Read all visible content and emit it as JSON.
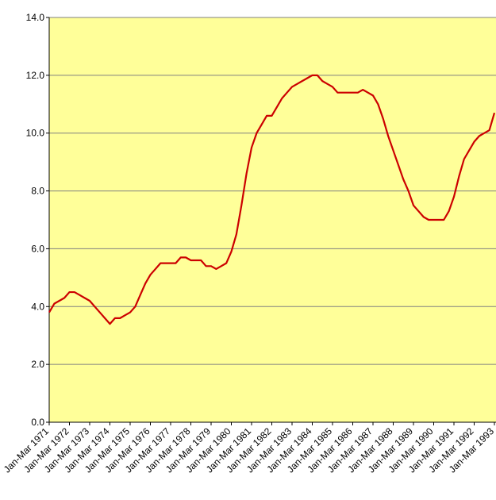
{
  "chart_data": {
    "type": "line",
    "categories": [
      "Jan-Mar 1971",
      null,
      null,
      null,
      "Jan-Mar 1972",
      null,
      null,
      null,
      "Jan-Mar 1973",
      null,
      null,
      null,
      "Jan-Mar 1974",
      null,
      null,
      null,
      "Jan-Mar 1975",
      null,
      null,
      null,
      "Jan-Mar 1976",
      null,
      null,
      null,
      "Jan-Mar 1977",
      null,
      null,
      null,
      "Jan-Mar 1978",
      null,
      null,
      null,
      "Jan-Mar 1979",
      null,
      null,
      null,
      "Jan-Mar 1980",
      null,
      null,
      null,
      "Jan-Mar 1981",
      null,
      null,
      null,
      "Jan-Mar 1982",
      null,
      null,
      null,
      "Jan-Mar 1983",
      null,
      null,
      null,
      "Jan-Mar 1984",
      null,
      null,
      null,
      "Jan-Mar 1985",
      null,
      null,
      null,
      "Jan-Mar 1986",
      null,
      null,
      null,
      "Jan-Mar 1987",
      null,
      null,
      null,
      "Jan-Mar 1988",
      null,
      null,
      null,
      "Jan-Mar 1989",
      null,
      null,
      null,
      "Jan-Mar 1990",
      null,
      null,
      null,
      "Jan-Mar 1991",
      null,
      null,
      null,
      "Jan-Mar 1992",
      null,
      null,
      null,
      "Jan-Mar 1993"
    ],
    "values": [
      3.8,
      4.1,
      4.2,
      4.3,
      4.5,
      4.5,
      4.4,
      4.3,
      4.2,
      4.0,
      3.8,
      3.6,
      3.4,
      3.6,
      3.6,
      3.7,
      3.8,
      4.0,
      4.4,
      4.8,
      5.1,
      5.3,
      5.5,
      5.5,
      5.5,
      5.5,
      5.7,
      5.7,
      5.6,
      5.6,
      5.6,
      5.4,
      5.4,
      5.3,
      5.4,
      5.5,
      5.9,
      6.5,
      7.5,
      8.6,
      9.5,
      10.0,
      10.3,
      10.6,
      10.6,
      10.9,
      11.2,
      11.4,
      11.6,
      11.7,
      11.8,
      11.9,
      12.0,
      12.0,
      11.8,
      11.7,
      11.6,
      11.4,
      11.4,
      11.4,
      11.4,
      11.4,
      11.5,
      11.4,
      11.3,
      11.0,
      10.5,
      9.9,
      9.4,
      8.9,
      8.4,
      8.0,
      7.5,
      7.3,
      7.1,
      7.0,
      7.0,
      7.0,
      7.0,
      7.3,
      7.8,
      8.5,
      9.1,
      9.4,
      9.7,
      9.9,
      10.0,
      10.1,
      10.7
    ],
    "color": "#cc0000",
    "background": "#ffff99",
    "grid": true,
    "ylim": [
      0,
      14
    ],
    "yticks": [
      {
        "value": 0,
        "label": "0.0"
      },
      {
        "value": 2,
        "label": "2.0"
      },
      {
        "value": 4,
        "label": "4.0"
      },
      {
        "value": 6,
        "label": "6.0"
      },
      {
        "value": 8,
        "label": "8.0"
      },
      {
        "value": 10,
        "label": "10.0"
      },
      {
        "value": 12,
        "label": "12.0"
      },
      {
        "value": 14,
        "label": "14.0"
      }
    ]
  }
}
